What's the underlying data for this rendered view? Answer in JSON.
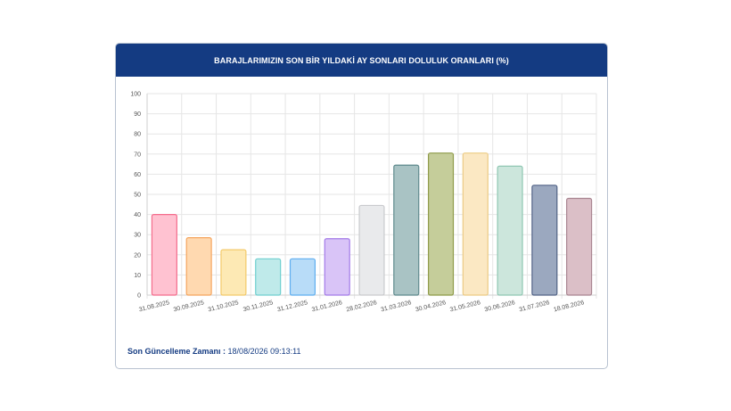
{
  "panel": {
    "title": "BARAJLARIMIZIN SON BİR YILDAKİ AY SONLARI DOLULUK ORANLARI (%)",
    "footer_label": "Son Güncelleme Zamanı :",
    "footer_value": "18/08/2026 09:13:11"
  },
  "chart_data": {
    "type": "bar",
    "title": "BARAJLARIMIZIN SON BİR YILDAKİ AY SONLARI DOLULUK ORANLARI (%)",
    "xlabel": "",
    "ylabel": "",
    "ylim": [
      0,
      100
    ],
    "yticks": [
      0,
      10,
      20,
      30,
      40,
      50,
      60,
      70,
      80,
      90,
      100
    ],
    "grid": true,
    "categories": [
      "31.08.2025",
      "30.09.2025",
      "31.10.2025",
      "30.11.2025",
      "31.12.2025",
      "31.01.2026",
      "28.02.2026",
      "31.03.2026",
      "30.04.2026",
      "31.05.2026",
      "30.06.2026",
      "31.07.2026",
      "18.08.2026"
    ],
    "values": [
      40,
      28.5,
      22.5,
      18,
      18,
      28,
      44.5,
      64.5,
      70.5,
      70.5,
      64,
      54.5,
      48
    ],
    "fill_colors": [
      "#ffc2d1",
      "#ffd9b0",
      "#fde9b4",
      "#bfeaea",
      "#b8dcf8",
      "#d9c4f7",
      "#e9eaec",
      "#a9c3c4",
      "#c5cd9a",
      "#fbe8c3",
      "#cce6dc",
      "#9ba8bf",
      "#dbbfc7"
    ],
    "stroke_colors": [
      "#f46c8c",
      "#f5a55e",
      "#f3ca6a",
      "#6fcfcf",
      "#5eaef0",
      "#a37ae8",
      "#c9cacd",
      "#5f8a8d",
      "#8e9a48",
      "#eccb84",
      "#8fc7b2",
      "#536488",
      "#a98591"
    ]
  }
}
